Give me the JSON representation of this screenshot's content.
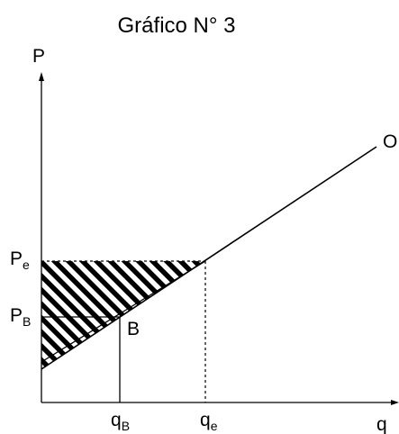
{
  "title": "Gráfico N° 3",
  "labels": {
    "y_axis": "P",
    "x_axis": "q",
    "supply_curve": "O",
    "point_b": "B",
    "pe": {
      "main": "P",
      "sub": "e"
    },
    "pb": {
      "main": "P",
      "sub": "B"
    },
    "qb": {
      "main": "q",
      "sub": "B"
    },
    "qe": {
      "main": "q",
      "sub": "e"
    }
  },
  "colors": {
    "ink": "#000000",
    "background": "#ffffff"
  }
}
